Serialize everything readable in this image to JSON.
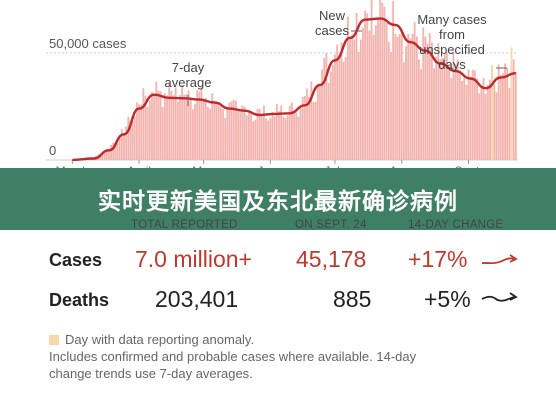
{
  "colors": {
    "line": "#c0282b",
    "bars": "#f3b3ae",
    "anomaly": "#f6d9a7",
    "banner": "#3f7f66",
    "accent_red": "#c0392b"
  },
  "banner": {
    "title": "实时更新美国及东北最新确诊病例"
  },
  "chart_data": {
    "type": "bar",
    "grid": true,
    "x_range": [
      "2020-02-28",
      "2020-09-24"
    ],
    "ylim": [
      0,
      70000
    ],
    "x_tick_labels": [
      "March",
      "April",
      "May",
      "June",
      "July",
      "Aug.",
      "Sept."
    ],
    "x_tick_dates": [
      "2020-03-01",
      "2020-04-01",
      "2020-05-01",
      "2020-06-01",
      "2020-07-01",
      "2020-08-01",
      "2020-09-01"
    ],
    "y_ticks": [
      0,
      50000
    ],
    "y_tick_labels": [
      "0",
      "50,000 cases"
    ],
    "series": [
      {
        "name": "New cases",
        "type": "bar",
        "x": [
          "2020-03-01",
          "2020-03-11",
          "2020-03-18",
          "2020-03-25",
          "2020-04-01",
          "2020-04-08",
          "2020-04-15",
          "2020-04-22",
          "2020-04-29",
          "2020-05-06",
          "2020-05-13",
          "2020-05-20",
          "2020-05-27",
          "2020-06-03",
          "2020-06-10",
          "2020-06-17",
          "2020-06-24",
          "2020-07-01",
          "2020-07-08",
          "2020-07-15",
          "2020-07-22",
          "2020-07-29",
          "2020-08-05",
          "2020-08-12",
          "2020-08-19",
          "2020-08-26",
          "2020-09-02",
          "2020-09-09",
          "2020-09-16",
          "2020-09-23"
        ],
        "y": [
          100,
          1100,
          5500,
          13500,
          26500,
          33000,
          31000,
          32500,
          29500,
          27000,
          24000,
          23500,
          21500,
          22000,
          22500,
          27500,
          38500,
          50500,
          61000,
          67500,
          67000,
          64000,
          56500,
          53000,
          46500,
          41500,
          38500,
          34000,
          42000,
          45500
        ]
      },
      {
        "name": "7-day average",
        "type": "line",
        "x": [
          "2020-03-01",
          "2020-03-11",
          "2020-03-18",
          "2020-03-25",
          "2020-04-01",
          "2020-04-08",
          "2020-04-15",
          "2020-04-22",
          "2020-04-29",
          "2020-05-06",
          "2020-05-13",
          "2020-05-20",
          "2020-05-27",
          "2020-06-03",
          "2020-06-10",
          "2020-06-17",
          "2020-06-24",
          "2020-07-01",
          "2020-07-08",
          "2020-07-15",
          "2020-07-22",
          "2020-07-29",
          "2020-08-05",
          "2020-08-12",
          "2020-08-19",
          "2020-08-26",
          "2020-09-02",
          "2020-09-09",
          "2020-09-16",
          "2020-09-23"
        ],
        "y": [
          50,
          700,
          4500,
          12000,
          24000,
          30500,
          29000,
          28800,
          28200,
          26800,
          24000,
          23000,
          21000,
          21500,
          21800,
          25500,
          35000,
          46500,
          57000,
          65500,
          66000,
          63000,
          55000,
          51000,
          45000,
          41500,
          38000,
          33500,
          38500,
          40500
        ]
      }
    ],
    "annotations": [
      {
        "text": "7-day average",
        "target": "7-day average"
      },
      {
        "text": "New cases",
        "target": "New cases"
      },
      {
        "text": "Many cases from unspecified days"
      }
    ]
  },
  "summary": {
    "headers": {
      "total": "TOTAL REPORTED",
      "day": "ON SEPT. 24",
      "change": "14-DAY CHANGE"
    },
    "rows": [
      {
        "label": "Cases",
        "total": "7.0 million+",
        "day": "45,178",
        "change": "+17%",
        "trend": "up"
      },
      {
        "label": "Deaths",
        "total": "203,401",
        "day": "885",
        "change": "+5%",
        "trend": "flat"
      }
    ]
  },
  "notes": {
    "anomaly": "Day with data reporting anomaly.",
    "line2": "Includes confirmed and probable cases where available. 14-day",
    "line3": "change trends use 7-day averages."
  }
}
